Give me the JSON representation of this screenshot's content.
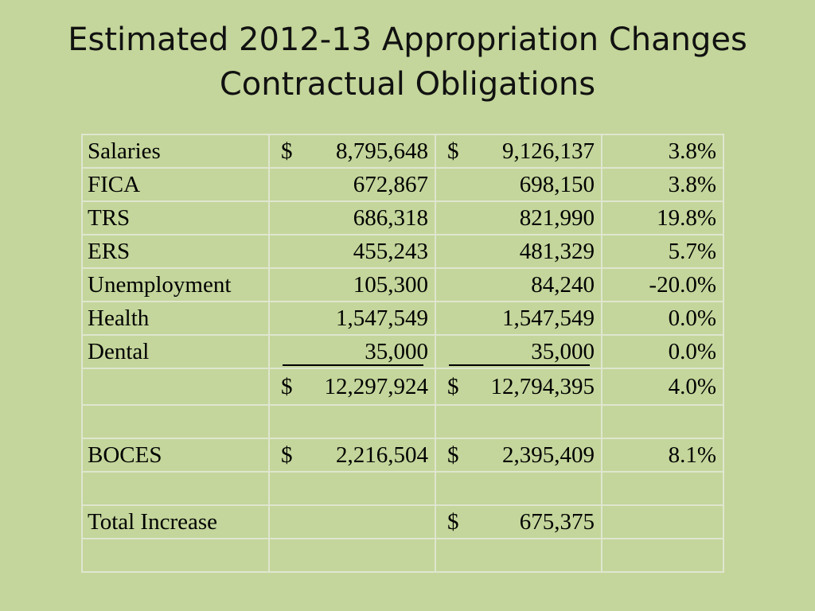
{
  "title": {
    "line1": "Estimated 2012-13 Appropriation Changes",
    "line2": "Contractual Obligations"
  },
  "rows": [
    {
      "label": "Salaries",
      "d1": "$",
      "v1": "8,795,648",
      "d2": "$",
      "v2": "9,126,137",
      "pct": "3.8%"
    },
    {
      "label": "FICA",
      "d1": "",
      "v1": "672,867",
      "d2": "",
      "v2": "698,150",
      "pct": "3.8%"
    },
    {
      "label": "TRS",
      "d1": "",
      "v1": "686,318",
      "d2": "",
      "v2": "821,990",
      "pct": "19.8%"
    },
    {
      "label": "ERS",
      "d1": "",
      "v1": "455,243",
      "d2": "",
      "v2": "481,329",
      "pct": "5.7%"
    },
    {
      "label": "Unemployment",
      "d1": "",
      "v1": "105,300",
      "d2": "",
      "v2": "84,240",
      "pct": "-20.0%"
    },
    {
      "label": "Health",
      "d1": "",
      "v1": "1,547,549",
      "d2": "",
      "v2": "1,547,549",
      "pct": "0.0%"
    },
    {
      "label": "Dental",
      "d1": "",
      "v1": "35,000",
      "d2": "",
      "v2": "35,000",
      "pct": "0.0%"
    },
    {
      "label": "",
      "d1": "$",
      "v1": "12,297,924",
      "d2": "$",
      "v2": "12,794,395",
      "pct": "4.0%"
    },
    {
      "label": "",
      "d1": "",
      "v1": "",
      "d2": "",
      "v2": "",
      "pct": ""
    },
    {
      "label": "BOCES",
      "d1": "$",
      "v1": "2,216,504",
      "d2": "$",
      "v2": "2,395,409",
      "pct": "8.1%"
    },
    {
      "label": "",
      "d1": "",
      "v1": "",
      "d2": "",
      "v2": "",
      "pct": ""
    },
    {
      "label": "Total Increase",
      "d1": "",
      "v1": "",
      "d2": "$",
      "v2": "675,375",
      "pct": ""
    },
    {
      "label": "",
      "d1": "",
      "v1": "",
      "d2": "",
      "v2": "",
      "pct": ""
    }
  ]
}
